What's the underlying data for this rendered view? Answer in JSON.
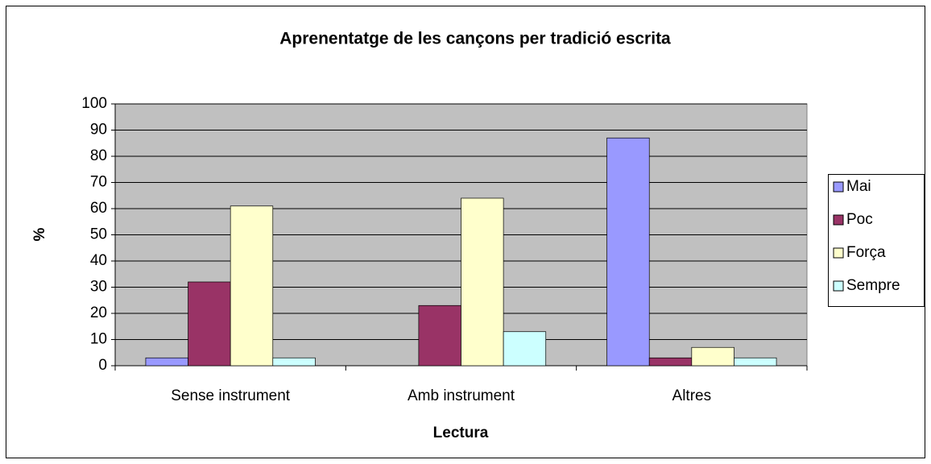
{
  "chart_data": {
    "type": "bar",
    "title": "Aprenentatge de les cançons per tradició escrita",
    "x_label": "Lectura",
    "y_label": "%",
    "categories": [
      "Sense instrument",
      "Amb instrument",
      "Altres"
    ],
    "series": [
      {
        "name": "Mai",
        "color": "#9999ff",
        "values": [
          3,
          0,
          87
        ]
      },
      {
        "name": "Poc",
        "color": "#993366",
        "values": [
          32,
          23,
          3
        ]
      },
      {
        "name": "Força",
        "color": "#ffffcc",
        "values": [
          61,
          64,
          7
        ]
      },
      {
        "name": "Sempre",
        "color": "#ccffff",
        "values": [
          3,
          13,
          3
        ]
      }
    ],
    "ylim": [
      0,
      100
    ],
    "yticks": [
      0,
      10,
      20,
      30,
      40,
      50,
      60,
      70,
      80,
      90,
      100
    ],
    "grid": true,
    "legend": "right",
    "plot_background": "#c0c0c0"
  }
}
